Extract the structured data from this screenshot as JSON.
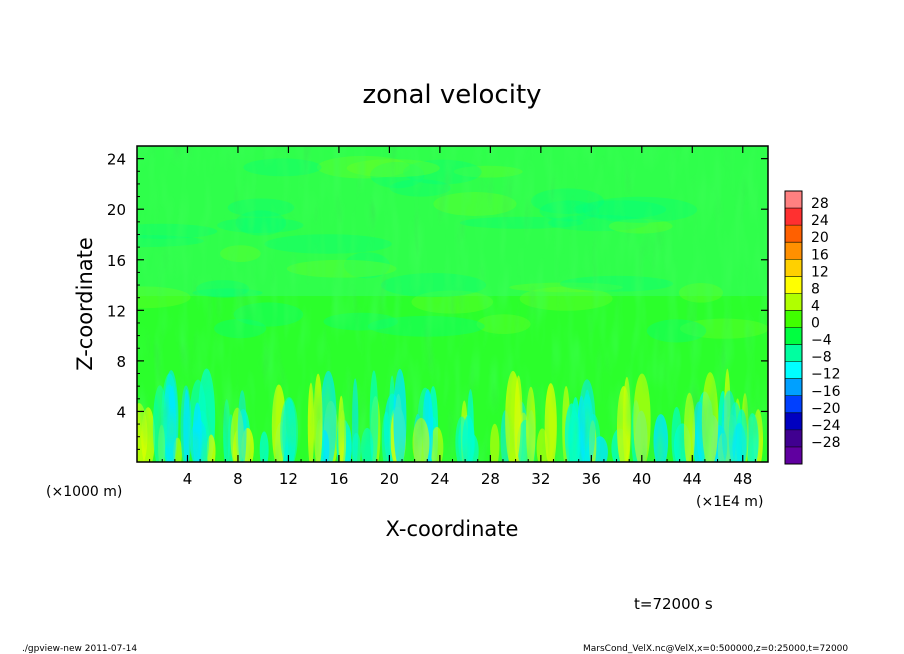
{
  "chart_data": {
    "type": "heatmap",
    "title": "zonal velocity",
    "xlabel": "X-coordinate",
    "ylabel": "Z-coordinate",
    "x_unit": "(×1E4 m)",
    "y_unit": "(×1000 m)",
    "xlim": [
      0,
      50
    ],
    "ylim": [
      0,
      25
    ],
    "x_ticks": [
      4,
      8,
      12,
      16,
      20,
      24,
      28,
      32,
      36,
      40,
      44,
      48
    ],
    "y_ticks": [
      4,
      8,
      12,
      16,
      20,
      24
    ],
    "colorbar": {
      "levels": [
        28,
        24,
        20,
        16,
        12,
        8,
        4,
        0,
        -4,
        -8,
        -12,
        -16,
        -20,
        -24,
        -28
      ],
      "colors": [
        "#ff8080",
        "#ff3030",
        "#ff6000",
        "#ff9000",
        "#ffd000",
        "#ffff00",
        "#b0ff00",
        "#40ff00",
        "#00ff40",
        "#00ffa0",
        "#00ffff",
        "#00a0ff",
        "#0040ff",
        "#0000c0",
        "#400090",
        "#6000a0"
      ]
    },
    "time_label": "t=72000 s"
  },
  "footer": {
    "left": "./gpview-new   2011-07-14",
    "right": "MarsCond_VelX.nc@VelX,x=0:500000,z=0:25000,t=72000"
  }
}
